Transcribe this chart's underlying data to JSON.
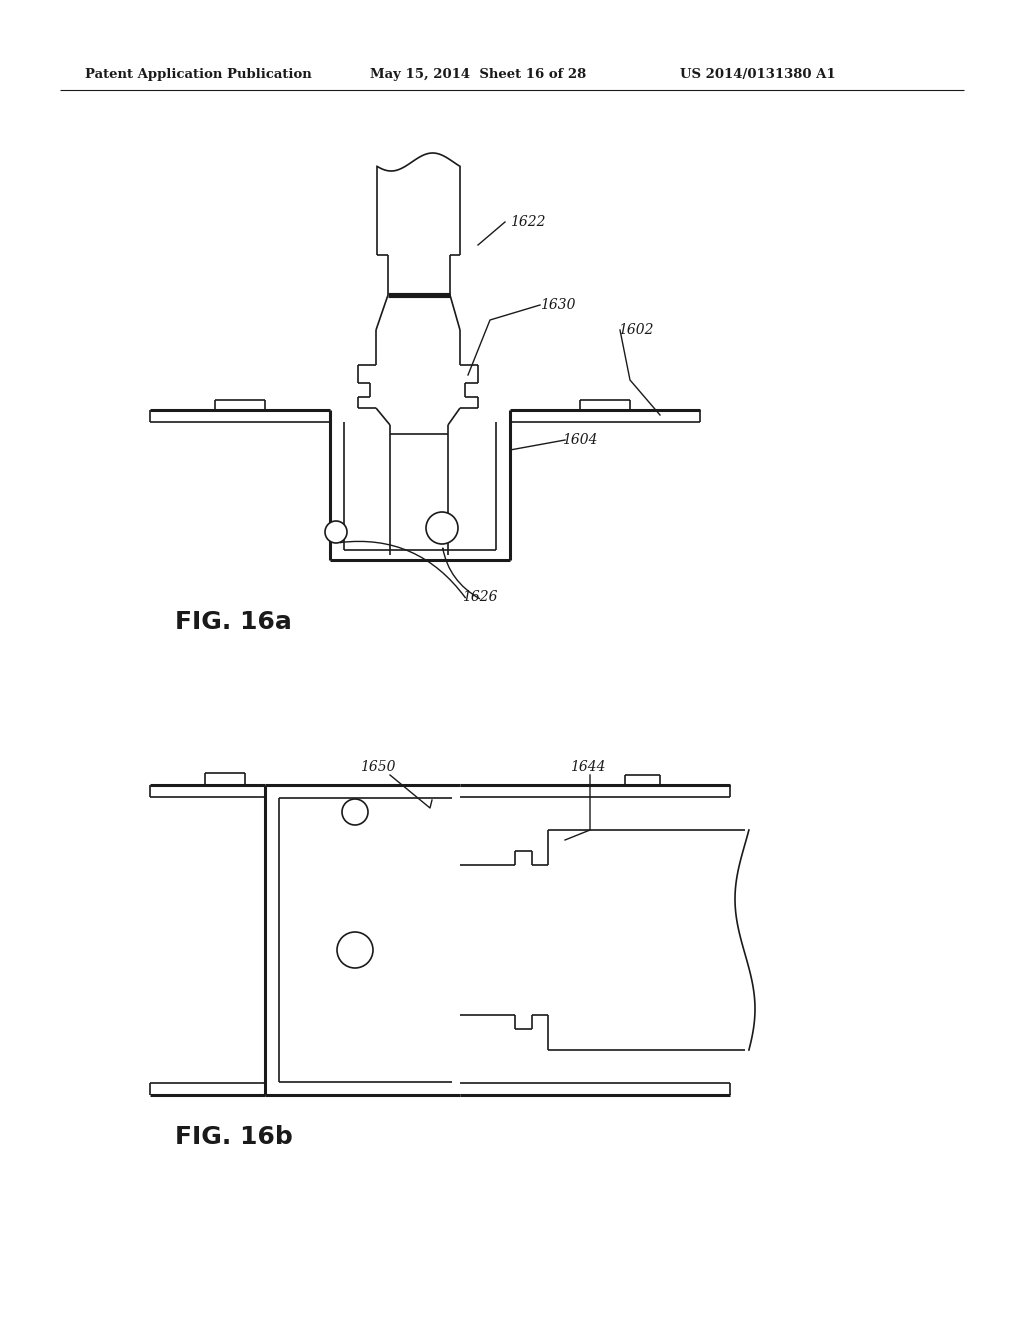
{
  "header_left": "Patent Application Publication",
  "header_mid": "May 15, 2014  Sheet 16 of 28",
  "header_right": "US 2014/0131380 A1",
  "fig_a_label": "FIG. 16a",
  "fig_b_label": "FIG. 16b",
  "bg_color": "#ffffff",
  "line_color": "#1a1a1a",
  "lw_thick": 2.2,
  "lw_thin": 1.2,
  "lw_medium": 1.7
}
